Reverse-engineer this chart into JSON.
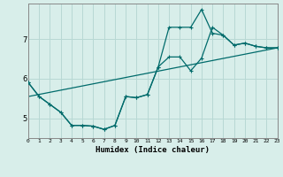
{
  "xlabel": "Humidex (Indice chaleur)",
  "bg_color": "#d8eeea",
  "line_color": "#006b6b",
  "grid_color": "#b8d8d4",
  "line1_x": [
    0,
    1,
    2,
    3,
    4,
    5,
    6,
    7,
    8,
    9,
    10,
    11,
    12,
    13,
    14,
    15,
    16,
    17,
    18,
    19,
    20,
    21,
    22,
    23
  ],
  "line1_y": [
    5.9,
    5.55,
    5.35,
    5.15,
    4.82,
    4.82,
    4.8,
    4.72,
    4.82,
    5.55,
    5.52,
    5.6,
    6.3,
    6.55,
    6.55,
    6.2,
    6.52,
    7.3,
    7.1,
    6.85,
    6.9,
    6.82,
    6.78,
    6.78
  ],
  "line2_x": [
    0,
    1,
    2,
    3,
    4,
    5,
    6,
    7,
    8,
    9,
    10,
    11,
    12,
    13,
    14,
    15,
    16,
    17,
    18,
    19,
    20,
    21,
    22,
    23
  ],
  "line2_y": [
    5.9,
    5.55,
    5.35,
    5.15,
    4.82,
    4.82,
    4.8,
    4.72,
    4.82,
    5.55,
    5.52,
    5.6,
    6.3,
    7.3,
    7.3,
    7.3,
    7.75,
    7.15,
    7.1,
    6.85,
    6.9,
    6.82,
    6.78,
    6.78
  ],
  "line3_x": [
    0,
    23
  ],
  "line3_y": [
    5.55,
    6.78
  ],
  "yticks": [
    5,
    6,
    7
  ],
  "xticks": [
    0,
    1,
    2,
    3,
    4,
    5,
    6,
    7,
    8,
    9,
    10,
    11,
    12,
    13,
    14,
    15,
    16,
    17,
    18,
    19,
    20,
    21,
    22,
    23
  ],
  "xlim": [
    0,
    23
  ],
  "ylim": [
    4.5,
    7.9
  ]
}
